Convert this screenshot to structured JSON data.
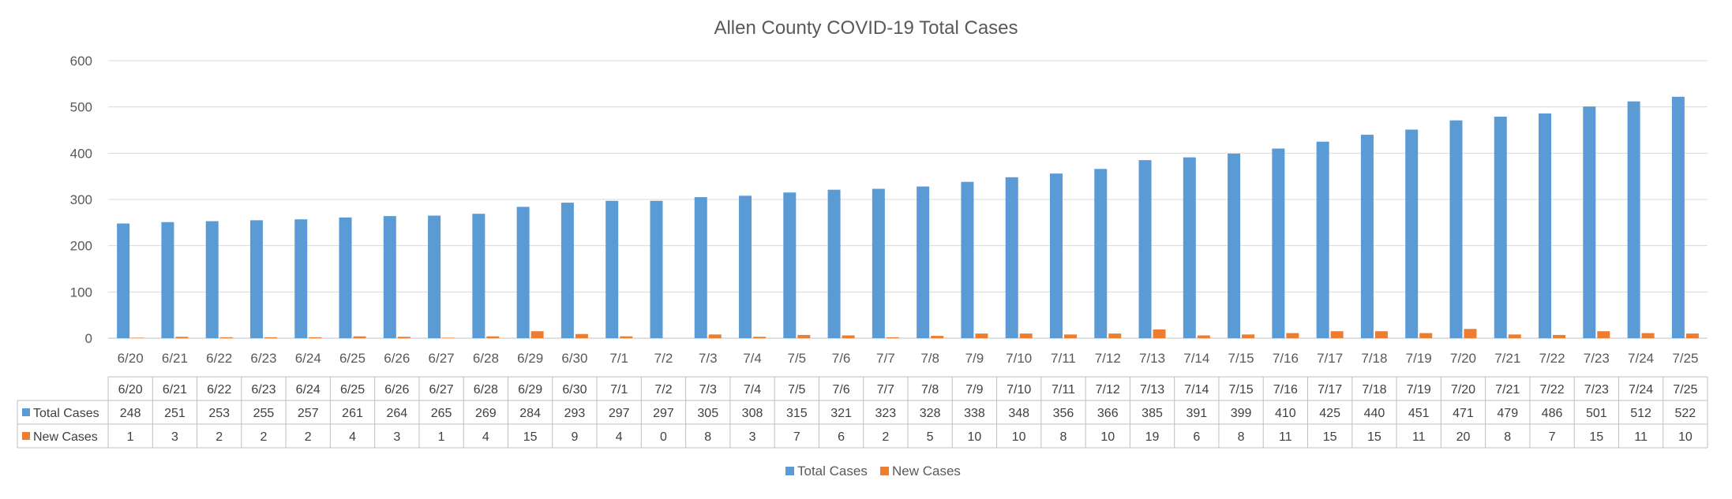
{
  "chart_data": {
    "type": "bar",
    "title": "Allen County COVID-19 Total Cases",
    "xlabel": "",
    "ylabel": "",
    "ylim": [
      0,
      600
    ],
    "y_ticks": [
      0,
      100,
      200,
      300,
      400,
      500,
      600
    ],
    "grid": true,
    "legend_position": "bottom",
    "data_table": true,
    "categories": [
      "6/20",
      "6/21",
      "6/22",
      "6/23",
      "6/24",
      "6/25",
      "6/26",
      "6/27",
      "6/28",
      "6/29",
      "6/30",
      "7/1",
      "7/2",
      "7/3",
      "7/4",
      "7/5",
      "7/6",
      "7/7",
      "7/8",
      "7/9",
      "7/10",
      "7/11",
      "7/12",
      "7/13",
      "7/14",
      "7/15",
      "7/16",
      "7/17",
      "7/18",
      "7/19",
      "7/20",
      "7/21",
      "7/22",
      "7/23",
      "7/24",
      "7/25"
    ],
    "series": [
      {
        "name": "Total Cases",
        "color": "#5B9BD5",
        "values": [
          248,
          251,
          253,
          255,
          257,
          261,
          264,
          265,
          269,
          284,
          293,
          297,
          297,
          305,
          308,
          315,
          321,
          323,
          328,
          338,
          348,
          356,
          366,
          385,
          391,
          399,
          410,
          425,
          440,
          451,
          471,
          479,
          486,
          501,
          512,
          522
        ]
      },
      {
        "name": "New Cases",
        "color": "#ED7D31",
        "values": [
          1,
          3,
          2,
          2,
          2,
          4,
          3,
          1,
          4,
          15,
          9,
          4,
          0,
          8,
          3,
          7,
          6,
          2,
          5,
          10,
          10,
          8,
          10,
          19,
          6,
          8,
          11,
          15,
          15,
          11,
          20,
          8,
          7,
          15,
          11,
          10
        ]
      }
    ]
  }
}
